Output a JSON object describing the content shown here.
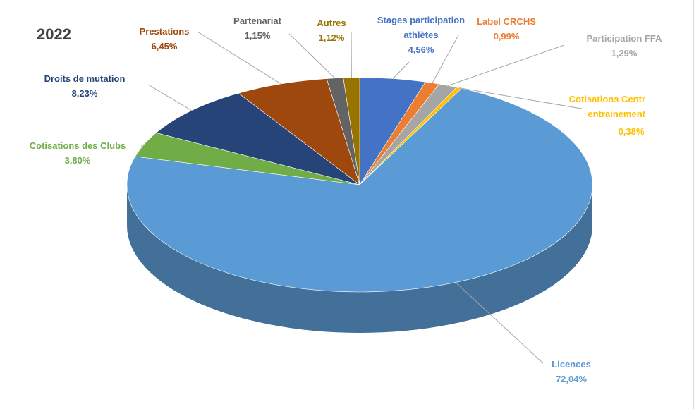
{
  "chart_data": {
    "type": "pie",
    "title": "2022",
    "categories": [
      "Stages participation athlètes",
      "Label CRCHS",
      "Participation FFA",
      "Cotisations Centr entrainement",
      "Licences",
      "Cotisations des Clubs",
      "Droits de mutation",
      "Prestations",
      "Partenariat",
      "Autres"
    ],
    "values": [
      4.56,
      0.99,
      1.29,
      0.38,
      72.04,
      3.8,
      8.23,
      6.45,
      1.15,
      1.12
    ],
    "value_labels": [
      "4,56%",
      "0,99%",
      "1,29%",
      "0,38%",
      "72,04%",
      "3,80%",
      "8,23%",
      "6,45%",
      "1,15%",
      "1,12%"
    ],
    "colors": [
      "#4472c4",
      "#ed7d31",
      "#a5a5a5",
      "#ffc000",
      "#5b9bd5",
      "#70ad47",
      "#264478",
      "#9e480e",
      "#636363",
      "#997300"
    ]
  }
}
